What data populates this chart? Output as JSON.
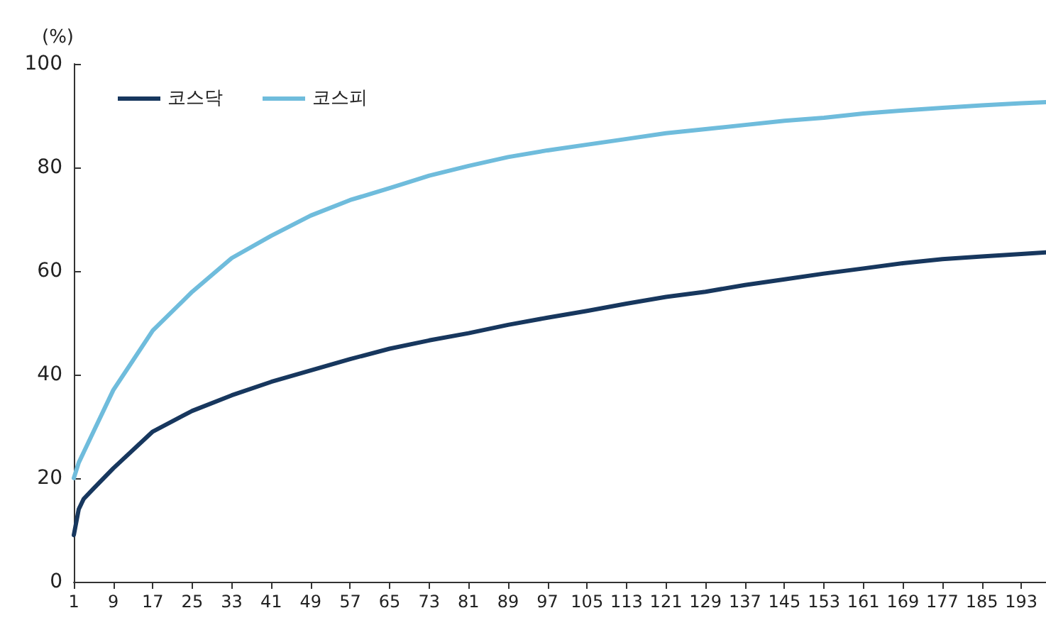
{
  "chart_data": {
    "type": "line",
    "ylabel": "(%)",
    "legend": "top left",
    "grid": false,
    "marker": "none",
    "line_style": "solid",
    "xlim": [
      1,
      198
    ],
    "xticks": [
      1,
      9,
      17,
      25,
      33,
      41,
      49,
      57,
      65,
      73,
      81,
      89,
      97,
      105,
      113,
      121,
      129,
      137,
      145,
      153,
      161,
      169,
      177,
      185,
      193
    ],
    "ylim": [
      0,
      100
    ],
    "yticks": [
      0,
      20,
      40,
      60,
      80,
      100
    ],
    "series": [
      {
        "name": "코스닥",
        "color": "#17375e",
        "x": [
          1,
          2,
          3,
          5,
          9,
          17,
          25,
          33,
          41,
          49,
          57,
          65,
          73,
          81,
          89,
          97,
          105,
          113,
          121,
          129,
          137,
          145,
          153,
          161,
          169,
          177,
          185,
          193,
          198
        ],
        "values": [
          9,
          14,
          16,
          18,
          21.9,
          29,
          33,
          36,
          38.6,
          40.8,
          43,
          45,
          46.6,
          48,
          49.6,
          51,
          52.3,
          53.7,
          55,
          56,
          57.3,
          58.4,
          59.5,
          60.5,
          61.5,
          62.3,
          62.8,
          63.3,
          63.6
        ]
      },
      {
        "name": "코스피",
        "color": "#6fbcdc",
        "x": [
          1,
          2,
          3,
          5,
          9,
          17,
          25,
          33,
          41,
          49,
          57,
          65,
          73,
          81,
          89,
          97,
          105,
          113,
          121,
          129,
          137,
          145,
          153,
          161,
          169,
          177,
          185,
          193,
          198
        ],
        "values": [
          20,
          23,
          25,
          29,
          37,
          48.5,
          56,
          62.5,
          66.8,
          70.7,
          73.7,
          76,
          78.4,
          80.3,
          82,
          83.3,
          84.4,
          85.5,
          86.6,
          87.4,
          88.2,
          89,
          89.6,
          90.4,
          91,
          91.5,
          92,
          92.4,
          92.6
        ]
      }
    ]
  }
}
